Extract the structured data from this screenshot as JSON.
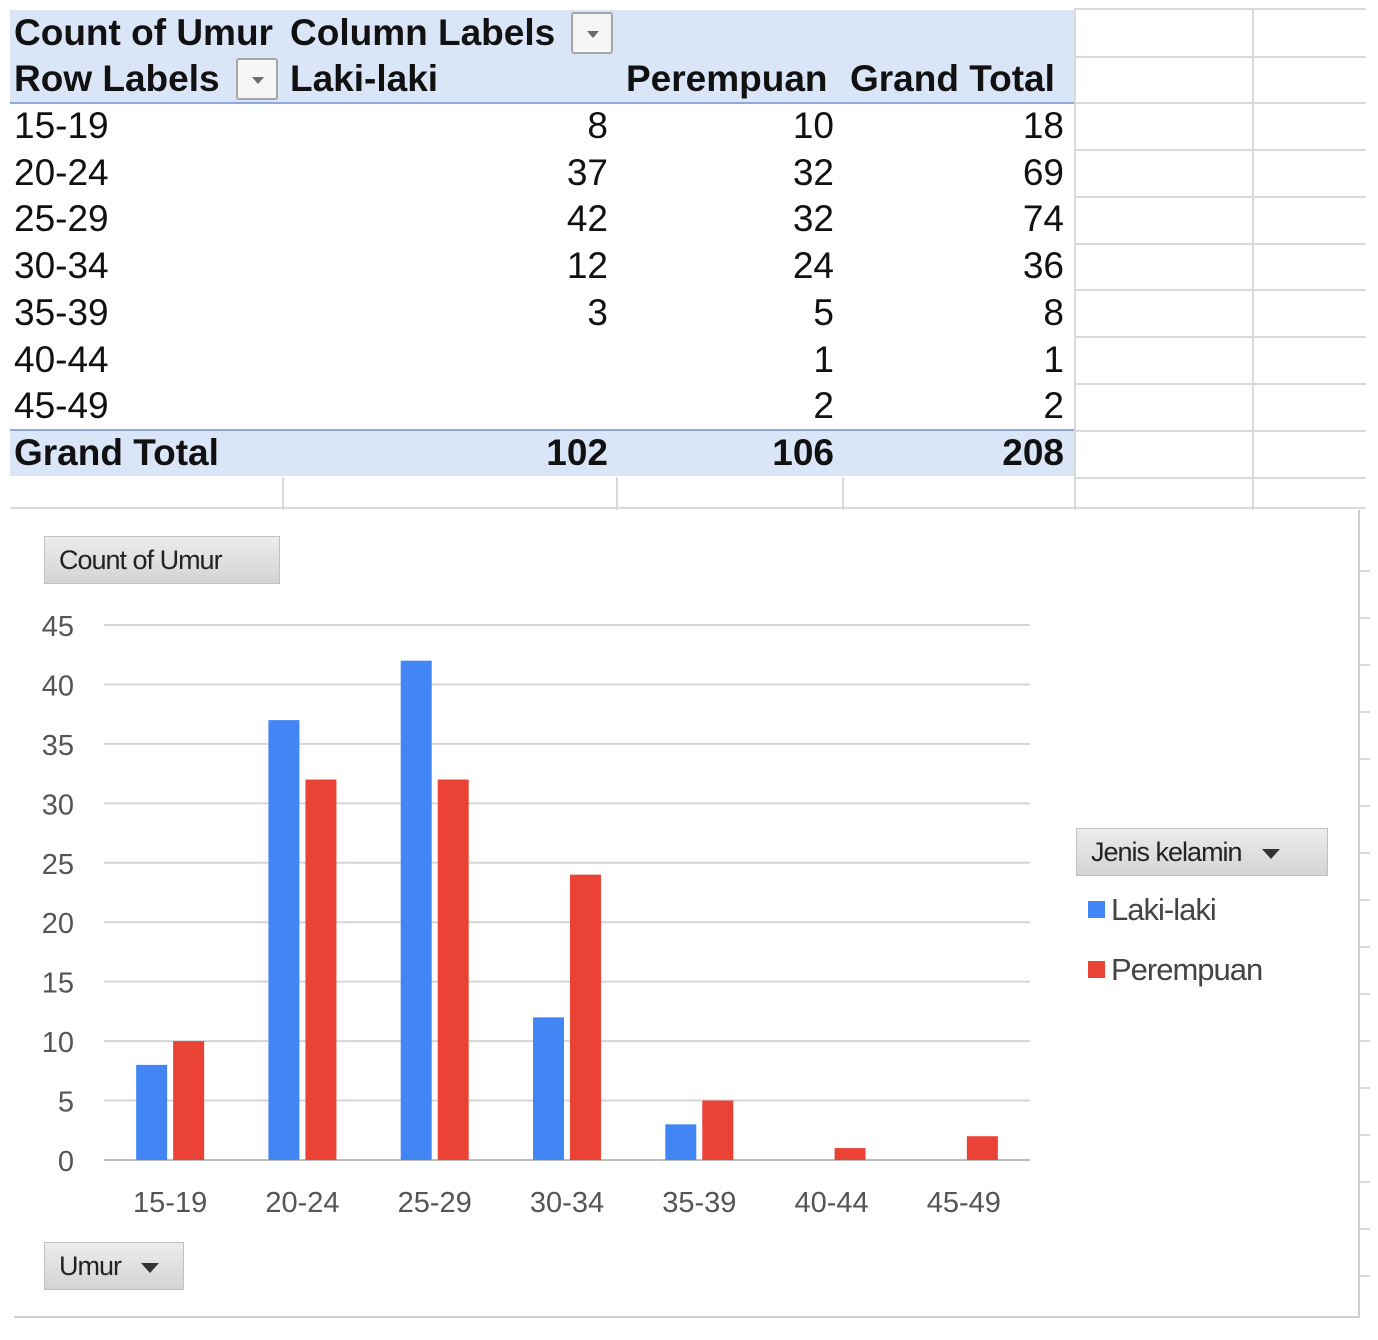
{
  "pivot": {
    "header_value_field": "Count of Umur",
    "header_column_labels": "Column Labels",
    "header_row_labels": "Row Labels",
    "columns": [
      "Laki-laki",
      "Perempuan",
      "Grand Total"
    ],
    "rows": [
      {
        "label": "15-19",
        "laki": "8",
        "perempuan": "10",
        "total": "18"
      },
      {
        "label": "20-24",
        "laki": "37",
        "perempuan": "32",
        "total": "69"
      },
      {
        "label": "25-29",
        "laki": "42",
        "perempuan": "32",
        "total": "74"
      },
      {
        "label": "30-34",
        "laki": "12",
        "perempuan": "24",
        "total": "36"
      },
      {
        "label": "35-39",
        "laki": "3",
        "perempuan": "5",
        "total": "8"
      },
      {
        "label": "40-44",
        "laki": "",
        "perempuan": "1",
        "total": "1"
      },
      {
        "label": "45-49",
        "laki": "",
        "perempuan": "2",
        "total": "2"
      }
    ],
    "grand_total": {
      "label": "Grand Total",
      "laki": "102",
      "perempuan": "106",
      "total": "208"
    }
  },
  "chart_buttons": {
    "value_field": "Count of Umur",
    "legend_field": "Jenis kelamin",
    "axis_field": "Umur"
  },
  "chart_data": {
    "type": "bar",
    "categories": [
      "15-19",
      "20-24",
      "25-29",
      "30-34",
      "35-39",
      "40-44",
      "45-49"
    ],
    "series": [
      {
        "name": "Laki-laki",
        "values": [
          8,
          37,
          42,
          12,
          3,
          null,
          null
        ],
        "color": "#4285f4"
      },
      {
        "name": "Perempuan",
        "values": [
          10,
          32,
          32,
          24,
          5,
          1,
          2
        ],
        "color": "#ea4335"
      }
    ],
    "yticks": [
      0,
      5,
      10,
      15,
      20,
      25,
      30,
      35,
      40,
      45
    ],
    "ylim": [
      0,
      45
    ],
    "grid": true,
    "legend_position": "right"
  }
}
